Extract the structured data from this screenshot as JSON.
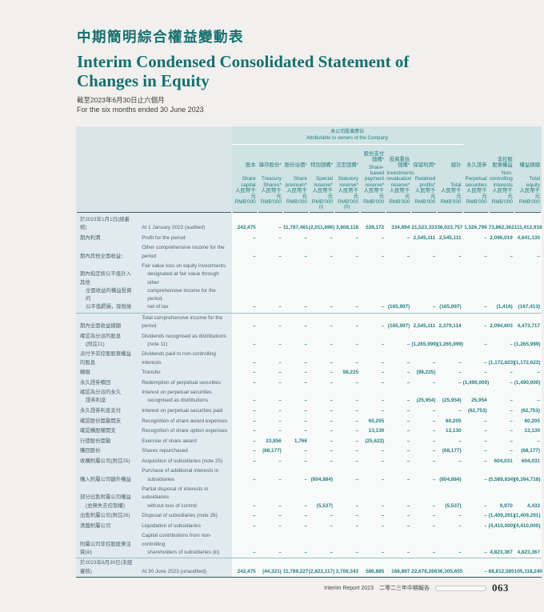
{
  "page": {
    "title_zh": "中期簡明綜合權益變動表",
    "title_en": "Interim Condensed Consolidated Statement of\nChanges in Equity",
    "subtitle_zh": "截至2023年6月30日止六個月",
    "subtitle_en": "For the six months ended 30 June 2023",
    "footer": {
      "report_en": "Interim Report 2023",
      "report_zh": "二零二三年中期報告",
      "page_number": "063"
    }
  },
  "colors": {
    "accent_teal": "#15706e",
    "table_number_teal": "#26807f",
    "header_band_bg": "#cfe2e4",
    "label_column_bg": "#e0eaef",
    "page_bg": "#f1f0ee"
  },
  "table": {
    "group_header": {
      "zh": "本公司股東應佔",
      "en": "Attributable to owners of the Company",
      "span_columns": 9
    },
    "unit_zh": "人民幣千元",
    "unit_en": "RMB'000",
    "columns": [
      {
        "key": "share_capital",
        "zh": "股本",
        "en": "Share\ncapital",
        "note": ""
      },
      {
        "key": "treasury_shares",
        "zh": "庫存股份*",
        "en": "Treasury\nShares*",
        "note": ""
      },
      {
        "key": "share_premium",
        "zh": "股份溢價*",
        "en": "Share\npremium*",
        "note": ""
      },
      {
        "key": "special_reserve",
        "zh": "特別儲備*",
        "en": "Special\nreserve*",
        "note": "(i)"
      },
      {
        "key": "statutory_reserve",
        "zh": "法定儲備*",
        "en": "Statutory\nreserve*",
        "note": "(ii)"
      },
      {
        "key": "share_based_payment_reserve",
        "zh": "股份支付\n儲備*",
        "en": "Share-based\npayment\nreserve*",
        "note": ""
      },
      {
        "key": "investments_revaluation_reserve",
        "zh": "投資重估\n儲備*",
        "en": "Investments\nrevaluation\nreserve*",
        "note": ""
      },
      {
        "key": "retained_profits",
        "zh": "保留利潤*",
        "en": "Retained\nprofits*",
        "note": ""
      },
      {
        "key": "total",
        "zh": "總計",
        "en": "Total",
        "note": ""
      },
      {
        "key": "perpetual_securities",
        "zh": "永久證券",
        "en": "Perpetual\nsecurities",
        "note": ""
      },
      {
        "key": "non_controlling_interests",
        "zh": "非控股\n股東權益",
        "en": "Non-\ncontrolling\ninterests",
        "note": ""
      },
      {
        "key": "total_equity",
        "zh": "權益總額",
        "en": "Total\nequity",
        "note": ""
      }
    ],
    "rows": [
      {
        "zh": [
          "於2023年1月1日(經審核)"
        ],
        "en": [
          "At 1 January 2023 (audited)"
        ],
        "open": true,
        "values": [
          "242,475",
          "–",
          "11,787,461",
          "(2,011,696)",
          "3,608,118",
          "539,172",
          "334,894",
          "21,523,333",
          "36,023,757",
          "1,526,799",
          "73,862,362",
          "111,412,918"
        ]
      },
      {
        "zh": [
          "期內利潤"
        ],
        "en": [
          "Profit for the period"
        ],
        "values": [
          "–",
          "–",
          "–",
          "–",
          "–",
          "–",
          "–",
          "2,545,111",
          "2,545,111",
          "–",
          "2,096,019",
          "4,641,130"
        ]
      },
      {
        "zh": [
          "期內其他全面收益："
        ],
        "en": [
          "Other comprehensive income for the period"
        ],
        "values": [
          "–",
          "–",
          "–",
          "–",
          "–",
          "–",
          "–",
          "–",
          "–",
          "–",
          "–",
          "–"
        ]
      },
      {
        "zh": [
          "期內指定按公平值計入其他",
          "全面收益的權益投資的",
          "公平值虧損，除稅後"
        ],
        "en": [
          "Fair value loss on equity investments",
          "designated at fair value through other",
          "comprehensive income for the period,",
          "net of tax"
        ],
        "values": [
          "–",
          "–",
          "–",
          "–",
          "–",
          "–",
          "(165,997)",
          "–",
          "(165,997)",
          "–",
          "(1,416)",
          "(167,413)"
        ]
      },
      {
        "zh": [
          "期內全面收益總額"
        ],
        "en": [
          "Total comprehensive income for the period"
        ],
        "rule_above": true,
        "values": [
          "–",
          "–",
          "–",
          "–",
          "–",
          "–",
          "(165,997)",
          "2,545,111",
          "2,379,114",
          "–",
          "2,094,603",
          "4,473,717"
        ]
      },
      {
        "zh": [
          "確認為分派的股息",
          "(附註11)"
        ],
        "en": [
          "Dividends recognised as distributions",
          "(note 11)"
        ],
        "values": [
          "–",
          "–",
          "–",
          "–",
          "–",
          "–",
          "–",
          "(1,265,999)",
          "(1,265,999)",
          "–",
          "–",
          "(1,265,999)"
        ]
      },
      {
        "zh": [
          "派付予非控股股東權益的股息"
        ],
        "en": [
          "Dividends paid to non-controlling interests"
        ],
        "values": [
          "–",
          "–",
          "–",
          "–",
          "–",
          "–",
          "–",
          "–",
          "–",
          "–",
          "(1,172,623)",
          "(1,172,623)"
        ]
      },
      {
        "zh": [
          "轉撥"
        ],
        "en": [
          "Transfer"
        ],
        "values": [
          "–",
          "–",
          "–",
          "–",
          "98,225",
          "–",
          "–",
          "(98,225)",
          "–",
          "–",
          "–",
          "–"
        ]
      },
      {
        "zh": [
          "永久證券贖回"
        ],
        "en": [
          "Redemption of perpetual securities"
        ],
        "values": [
          "–",
          "–",
          "–",
          "–",
          "–",
          "–",
          "–",
          "–",
          "–",
          "(1,490,000)",
          "–",
          "(1,490,000)"
        ]
      },
      {
        "zh": [
          "確認為分派的永久",
          "證券利息"
        ],
        "en": [
          "Interest on perpetual securities",
          "recognised as distributions"
        ],
        "values": [
          "–",
          "–",
          "–",
          "–",
          "–",
          "–",
          "–",
          "(25,954)",
          "(25,954)",
          "25,954",
          "–",
          "–"
        ]
      },
      {
        "zh": [
          "永久證券利息支付"
        ],
        "en": [
          "Interest on perpetual securities paid"
        ],
        "values": [
          "–",
          "–",
          "–",
          "–",
          "–",
          "–",
          "–",
          "–",
          "–",
          "(62,753)",
          "–",
          "(62,753)"
        ]
      },
      {
        "zh": [
          "確認股份獎勵開支"
        ],
        "en": [
          "Recognition of share award expenses"
        ],
        "values": [
          "–",
          "–",
          "–",
          "–",
          "–",
          "60,205",
          "–",
          "–",
          "60,205",
          "–",
          "–",
          "60,205"
        ]
      },
      {
        "zh": [
          "確認購股權開支"
        ],
        "en": [
          "Recognition of share option expenses"
        ],
        "values": [
          "–",
          "–",
          "–",
          "–",
          "–",
          "13,130",
          "–",
          "–",
          "13,130",
          "–",
          "–",
          "13,130"
        ]
      },
      {
        "zh": [
          "行使股份獎勵"
        ],
        "en": [
          "Exercise of share award"
        ],
        "values": [
          "–",
          "23,856",
          "1,766",
          "–",
          "–",
          "(25,622)",
          "–",
          "–",
          "–",
          "–",
          "–",
          "–"
        ]
      },
      {
        "zh": [
          "購回股份"
        ],
        "en": [
          "Shares repurchased"
        ],
        "values": [
          "–",
          "(68,177)",
          "–",
          "–",
          "–",
          "–",
          "–",
          "–",
          "(68,177)",
          "–",
          "–",
          "(68,177)"
        ]
      },
      {
        "zh": [
          "收購附屬公司(附註25)"
        ],
        "en": [
          "Acquisition of subsidiaries (note 25)"
        ],
        "values": [
          "–",
          "–",
          "–",
          "–",
          "–",
          "–",
          "–",
          "–",
          "–",
          "–",
          "604,031",
          "604,031"
        ]
      },
      {
        "zh": [
          "購入附屬公司額外權益"
        ],
        "en": [
          "Purchase of additional interests in",
          "subsidiaries"
        ],
        "values": [
          "–",
          "–",
          "–",
          "(804,884)",
          "–",
          "–",
          "–",
          "–",
          "(804,884)",
          "–",
          "(5,589,834)",
          "(6,394,718)"
        ]
      },
      {
        "zh": [
          "部分出售附屬公司權益",
          "(並無失去控制權)"
        ],
        "en": [
          "Partial disposal of interests in subsidiaries",
          "without loss of control"
        ],
        "values": [
          "–",
          "–",
          "–",
          "(5,537)",
          "–",
          "–",
          "–",
          "–",
          "(5,537)",
          "–",
          "9,970",
          "4,433"
        ]
      },
      {
        "zh": [
          "出售附屬公司(附註26)"
        ],
        "en": [
          "Disposal of subsidiaries (note 26)"
        ],
        "values": [
          "–",
          "–",
          "–",
          "–",
          "–",
          "–",
          "–",
          "–",
          "–",
          "–",
          "(1,409,291)",
          "(1,409,291)"
        ]
      },
      {
        "zh": [
          "清盤附屬公司"
        ],
        "en": [
          "Liquidation of subsidiaries"
        ],
        "values": [
          "–",
          "–",
          "–",
          "–",
          "–",
          "–",
          "–",
          "–",
          "–",
          "–",
          "(4,410,000)",
          "(4,410,000)"
        ]
      },
      {
        "zh": [
          "附屬公司非控股股東注資(iii)"
        ],
        "en": [
          "Capital contributions from non-controlling",
          "shareholders of subsidiaries (iii)"
        ],
        "values": [
          "–",
          "–",
          "–",
          "–",
          "–",
          "–",
          "–",
          "–",
          "–",
          "–",
          "4,823,367",
          "4,823,367"
        ]
      },
      {
        "zh": [
          "於2023年6月30日(未經審核)"
        ],
        "en": [
          "At 30 June 2023 (unaudited)"
        ],
        "rule_above": true,
        "final": true,
        "values": [
          "242,475",
          "(44,321)",
          "11,789,227",
          "(2,822,117)",
          "3,706,343",
          "586,885",
          "168,897",
          "22,678,266",
          "36,305,655",
          "–",
          "68,812,585",
          "105,118,240"
        ]
      }
    ]
  }
}
